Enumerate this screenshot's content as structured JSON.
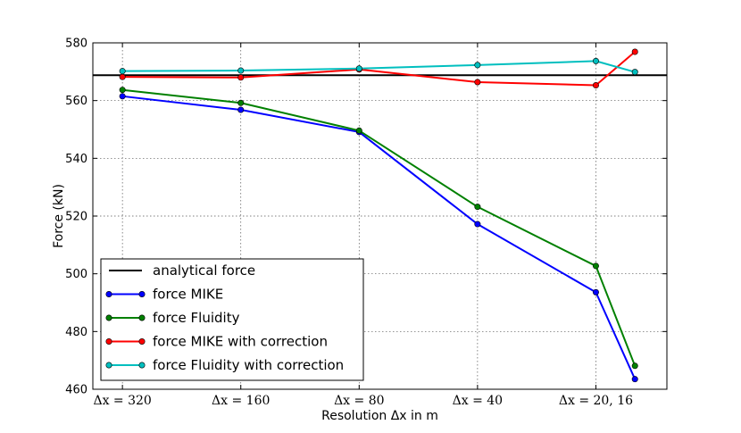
{
  "chart_data": {
    "type": "line",
    "title": "",
    "xlabel": "Resolution Δx in m",
    "ylabel": "Force (kN)",
    "categories": [
      "Δx = 320",
      "Δx = 160",
      "Δx = 80",
      "Δx = 40",
      "Δx = 20, 16"
    ],
    "x_positions": [
      0,
      1,
      2,
      3,
      4
    ],
    "xlim": [
      -0.25,
      4.6
    ],
    "ylim": [
      460,
      580
    ],
    "yticks": [
      460,
      480,
      500,
      520,
      540,
      560,
      580
    ],
    "grid": true,
    "legend_location": "lower-left",
    "reference_line": {
      "name": "analytical force",
      "value": 568.8,
      "color": "#000000"
    },
    "series": [
      {
        "name": "force MIKE",
        "color": "#0000ff",
        "x": [
          0,
          1,
          2,
          3,
          4,
          4.33
        ],
        "values": [
          561.5,
          556.8,
          549.1,
          517.2,
          493.6,
          463.5
        ]
      },
      {
        "name": "force Fluidity",
        "color": "#008000",
        "x": [
          0,
          1,
          2,
          3,
          4,
          4.33
        ],
        "values": [
          563.7,
          559.2,
          549.6,
          523.2,
          502.7,
          468.1
        ]
      },
      {
        "name": "force MIKE with correction",
        "color": "#ff0000",
        "x": [
          0,
          1,
          2,
          3,
          4,
          4.33
        ],
        "values": [
          568.2,
          568.0,
          570.8,
          566.4,
          565.3,
          576.9
        ]
      },
      {
        "name": "force Fluidity with correction",
        "color": "#00bfbf",
        "x": [
          0,
          1,
          2,
          3,
          4,
          4.33
        ],
        "values": [
          570.2,
          570.4,
          571.1,
          572.3,
          573.7,
          569.9
        ]
      }
    ]
  }
}
